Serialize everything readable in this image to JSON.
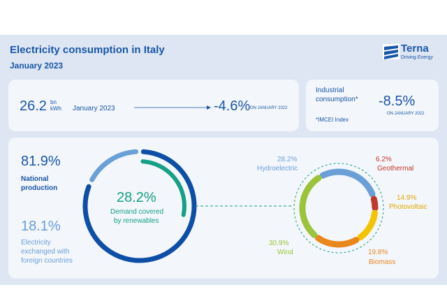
{
  "header": {
    "title": "Electricity consumption in Italy",
    "subtitle": "January 2023",
    "logo_name": "Terna",
    "logo_tagline": "Driving Energy"
  },
  "summary": {
    "value": "26.2",
    "unit_top": "bn",
    "unit_bottom": "kWh",
    "period": "January 2023",
    "change": "-4.6%",
    "change_ref": "ON JANUARY 2022"
  },
  "industrial": {
    "label_line1": "Industrial",
    "label_line2": "consumption*",
    "change": "-8.5%",
    "change_ref": "ON JANUARY 2022",
    "footnote": "*IMCEI Index"
  },
  "coverage": {
    "national_value": "81.9%",
    "national_label_line1": "National",
    "national_label_line2": "production",
    "foreign_value": "18.1%",
    "foreign_label_line1": "Electricity",
    "foreign_label_line2": "exchanged with",
    "foreign_label_line3": "foreign countries",
    "renewables_value": "28.2%",
    "renewables_label_line1": "Demand covered",
    "renewables_label_line2": "by renewables",
    "national_share": 0.819,
    "foreign_share": 0.181,
    "renewables_share": 0.282,
    "colors": {
      "national": "#0d4ea6",
      "foreign": "#6a9fd8",
      "renewables": "#16a085"
    }
  },
  "renewables_breakdown": {
    "sources": [
      {
        "key": "hydroelectric",
        "value": "28.2%",
        "label": "Hydroelectric",
        "share": 0.282,
        "color": "#6a9fd8"
      },
      {
        "key": "geothermal",
        "value": "6.2%",
        "label": "Geothermal",
        "share": 0.062,
        "color": "#c0392b"
      },
      {
        "key": "photovoltaic",
        "value": "14.9%",
        "label": "Photovoltaic",
        "share": 0.149,
        "color": "#f5c400"
      },
      {
        "key": "biomass",
        "value": "19.8%",
        "label": "Biomass",
        "share": 0.198,
        "color": "#e8871e"
      },
      {
        "key": "wind",
        "value": "30.9%",
        "label": "Wind",
        "share": 0.309,
        "color": "#9bc43a"
      }
    ]
  }
}
